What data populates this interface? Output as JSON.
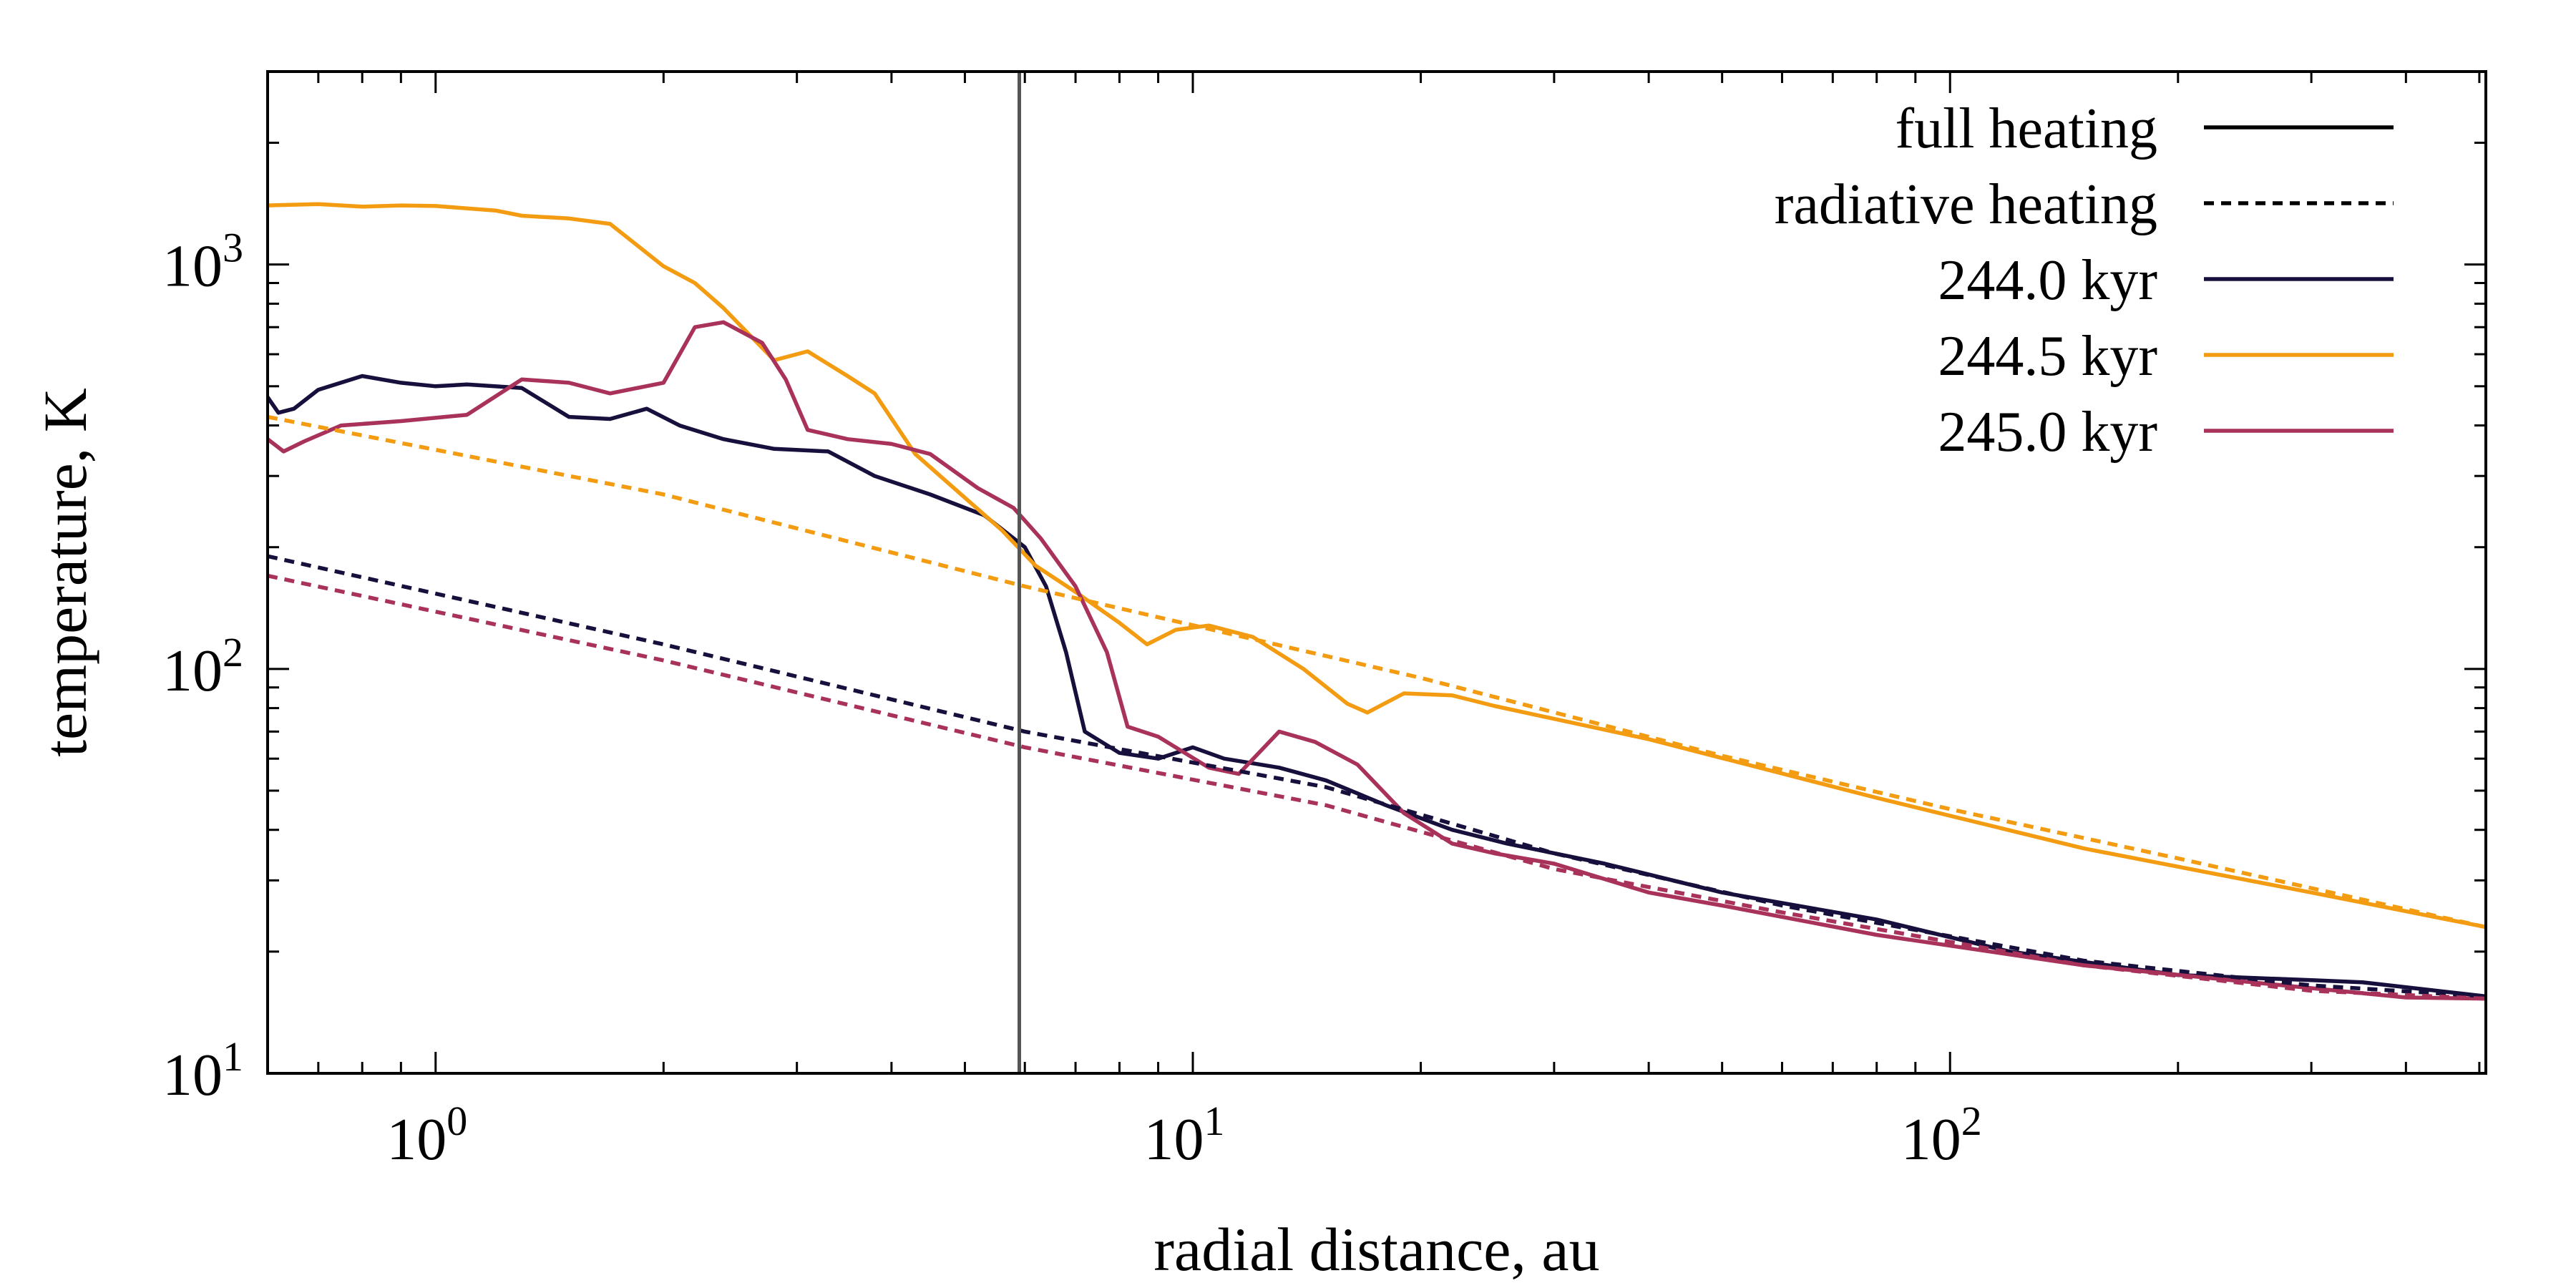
{
  "chart_data": {
    "type": "line",
    "title": "",
    "xlabel": "radial distance, au",
    "ylabel": "temperature, K",
    "xscale": "log",
    "yscale": "log",
    "xlim": [
      0.6,
      510
    ],
    "ylim": [
      10,
      3000
    ],
    "grid": false,
    "legend_position": "top-right",
    "x_ticks": [
      {
        "base": "10",
        "exp": "0",
        "value": 1
      },
      {
        "base": "10",
        "exp": "1",
        "value": 10
      },
      {
        "base": "10",
        "exp": "2",
        "value": 100
      }
    ],
    "y_ticks": [
      {
        "base": "10",
        "exp": "1",
        "value": 10
      },
      {
        "base": "10",
        "exp": "2",
        "value": 100
      },
      {
        "base": "10",
        "exp": "3",
        "value": 1000
      }
    ],
    "reference_lines": [
      {
        "orientation": "vertical",
        "x": 5.9,
        "color": "#555555"
      }
    ],
    "legend": [
      {
        "label": "full heating",
        "style": "solid",
        "color": "#000000"
      },
      {
        "label": "radiative heating",
        "style": "dotted",
        "color": "#000000"
      },
      {
        "label": "244.0 kyr",
        "style": "solid",
        "color": "#170f3c"
      },
      {
        "label": "244.5 kyr",
        "style": "solid",
        "color": "#f39c12"
      },
      {
        "label": "245.0 kyr",
        "style": "solid",
        "color": "#a8325a"
      }
    ],
    "series": [
      {
        "name": "244.0 kyr",
        "kind": "full heating",
        "color": "#170f3c",
        "style": "solid",
        "points": [
          [
            0.6,
            470
          ],
          [
            0.62,
            430
          ],
          [
            0.65,
            440
          ],
          [
            0.7,
            490
          ],
          [
            0.8,
            530
          ],
          [
            0.9,
            510
          ],
          [
            1.0,
            500
          ],
          [
            1.1,
            505
          ],
          [
            1.3,
            495
          ],
          [
            1.5,
            420
          ],
          [
            1.7,
            415
          ],
          [
            1.9,
            440
          ],
          [
            2.1,
            400
          ],
          [
            2.4,
            370
          ],
          [
            2.8,
            350
          ],
          [
            3.3,
            345
          ],
          [
            3.8,
            300
          ],
          [
            4.5,
            270
          ],
          [
            5.3,
            240
          ],
          [
            6.0,
            200
          ],
          [
            6.4,
            160
          ],
          [
            6.8,
            110
          ],
          [
            7.2,
            70
          ],
          [
            8.0,
            62
          ],
          [
            9.0,
            60
          ],
          [
            10.0,
            64
          ],
          [
            11.0,
            60
          ],
          [
            13.0,
            57
          ],
          [
            15.0,
            53
          ],
          [
            18.0,
            46
          ],
          [
            22.0,
            40
          ],
          [
            26.0,
            37
          ],
          [
            35.0,
            33
          ],
          [
            50.0,
            28
          ],
          [
            80.0,
            24
          ],
          [
            120.0,
            20
          ],
          [
            200.0,
            17.5
          ],
          [
            300.0,
            17
          ],
          [
            350.0,
            16.8
          ],
          [
            510.0,
            15.5
          ]
        ]
      },
      {
        "name": "244.5 kyr",
        "kind": "full heating",
        "color": "#f39c12",
        "style": "solid",
        "points": [
          [
            0.6,
            1400
          ],
          [
            0.7,
            1410
          ],
          [
            0.8,
            1390
          ],
          [
            0.9,
            1400
          ],
          [
            1.0,
            1395
          ],
          [
            1.2,
            1360
          ],
          [
            1.3,
            1320
          ],
          [
            1.5,
            1300
          ],
          [
            1.7,
            1260
          ],
          [
            2.0,
            990
          ],
          [
            2.2,
            900
          ],
          [
            2.4,
            780
          ],
          [
            2.8,
            580
          ],
          [
            3.1,
            610
          ],
          [
            3.5,
            530
          ],
          [
            3.8,
            480
          ],
          [
            4.3,
            340
          ],
          [
            5.0,
            265
          ],
          [
            5.6,
            220
          ],
          [
            6.2,
            180
          ],
          [
            7.0,
            155
          ],
          [
            8.0,
            130
          ],
          [
            8.7,
            115
          ],
          [
            9.5,
            125
          ],
          [
            10.5,
            128
          ],
          [
            12.0,
            120
          ],
          [
            14.0,
            100
          ],
          [
            16.0,
            82
          ],
          [
            17.0,
            78
          ],
          [
            19.0,
            87
          ],
          [
            22.0,
            86
          ],
          [
            25.0,
            81
          ],
          [
            40.0,
            67
          ],
          [
            80.0,
            48
          ],
          [
            150.0,
            36
          ],
          [
            300.0,
            28
          ],
          [
            510.0,
            23
          ]
        ]
      },
      {
        "name": "245.0 kyr",
        "kind": "full heating",
        "color": "#a8325a",
        "style": "solid",
        "points": [
          [
            0.6,
            370
          ],
          [
            0.63,
            345
          ],
          [
            0.67,
            365
          ],
          [
            0.75,
            400
          ],
          [
            0.9,
            410
          ],
          [
            1.1,
            425
          ],
          [
            1.3,
            520
          ],
          [
            1.5,
            510
          ],
          [
            1.7,
            480
          ],
          [
            2.0,
            510
          ],
          [
            2.2,
            700
          ],
          [
            2.4,
            720
          ],
          [
            2.7,
            640
          ],
          [
            2.9,
            520
          ],
          [
            3.1,
            390
          ],
          [
            3.5,
            370
          ],
          [
            4.0,
            360
          ],
          [
            4.5,
            340
          ],
          [
            5.2,
            280
          ],
          [
            5.8,
            250
          ],
          [
            6.3,
            210
          ],
          [
            7.0,
            160
          ],
          [
            7.7,
            110
          ],
          [
            8.2,
            72
          ],
          [
            9.0,
            68
          ],
          [
            10.5,
            57
          ],
          [
            11.5,
            55
          ],
          [
            13.0,
            70
          ],
          [
            14.5,
            66
          ],
          [
            16.5,
            58
          ],
          [
            19.0,
            44
          ],
          [
            22.0,
            37
          ],
          [
            25.0,
            35
          ],
          [
            30.0,
            33
          ],
          [
            40.0,
            28
          ],
          [
            50.0,
            26
          ],
          [
            80.0,
            22
          ],
          [
            150.0,
            18.5
          ],
          [
            250.0,
            16.8
          ],
          [
            400.0,
            15.4
          ],
          [
            510.0,
            15.3
          ]
        ]
      },
      {
        "name": "244.0 kyr",
        "kind": "radiative heating",
        "color": "#170f3c",
        "style": "dotted",
        "points": [
          [
            0.6,
            190
          ],
          [
            2.0,
            115
          ],
          [
            6.0,
            70
          ],
          [
            15.0,
            51
          ],
          [
            30.0,
            35
          ],
          [
            60.0,
            26
          ],
          [
            150.0,
            19
          ],
          [
            300.0,
            16.5
          ],
          [
            510.0,
            15.5
          ]
        ]
      },
      {
        "name": "244.5 kyr",
        "kind": "radiative heating",
        "color": "#f39c12",
        "style": "dotted",
        "points": [
          [
            0.6,
            420
          ],
          [
            2.0,
            270
          ],
          [
            6.0,
            160
          ],
          [
            20.0,
            95
          ],
          [
            50.0,
            61
          ],
          [
            100.0,
            45
          ],
          [
            200.0,
            34
          ],
          [
            510.0,
            23
          ]
        ]
      },
      {
        "name": "245.0 kyr",
        "kind": "radiative heating",
        "color": "#a8325a",
        "style": "dotted",
        "points": [
          [
            0.6,
            170
          ],
          [
            2.0,
            105
          ],
          [
            6.0,
            64
          ],
          [
            15.0,
            46
          ],
          [
            30.0,
            32
          ],
          [
            60.0,
            25
          ],
          [
            150.0,
            18.5
          ],
          [
            300.0,
            16
          ],
          [
            510.0,
            15.3
          ]
        ]
      }
    ]
  }
}
